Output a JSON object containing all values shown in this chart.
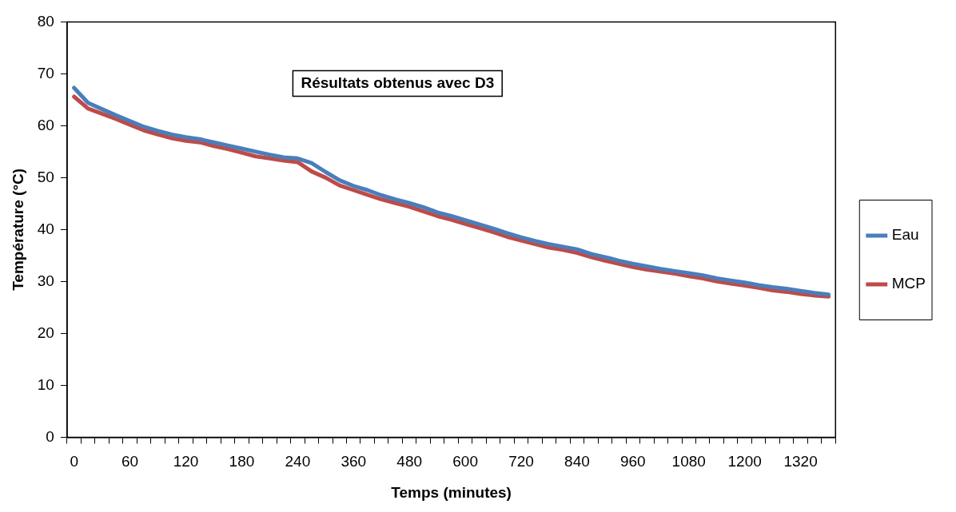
{
  "chart_data": {
    "type": "line",
    "title": "Résultats obtenus avec D3",
    "xlabel": "Temps (minutes)",
    "ylabel": "Température (°C)",
    "categories": [
      "0",
      null,
      null,
      null,
      "60",
      null,
      null,
      null,
      "120",
      null,
      null,
      null,
      "180",
      null,
      null,
      null,
      "240",
      null,
      null,
      null,
      "360",
      null,
      null,
      null,
      "480",
      null,
      null,
      null,
      "600",
      null,
      null,
      null,
      "720",
      null,
      null,
      null,
      "840",
      null,
      null,
      null,
      "960",
      null,
      null,
      null,
      "1080",
      null,
      null,
      null,
      "1200",
      null,
      null,
      null,
      "1320",
      null,
      null
    ],
    "series": [
      {
        "name": "Eau",
        "color": "#4a7ebb",
        "values": [
          67.3,
          64.4,
          63.2,
          62.0,
          60.9,
          59.8,
          59.0,
          58.3,
          57.8,
          57.4,
          56.8,
          56.2,
          55.6,
          55.0,
          54.4,
          53.9,
          53.7,
          52.8,
          51.1,
          49.5,
          48.4,
          47.6,
          46.6,
          45.8,
          45.1,
          44.3,
          43.3,
          42.6,
          41.8,
          41.0,
          40.2,
          39.3,
          38.5,
          37.8,
          37.2,
          36.7,
          36.2,
          35.3,
          34.7,
          34.0,
          33.4,
          32.9,
          32.4,
          32.0,
          31.6,
          31.2,
          30.6,
          30.2,
          29.8,
          29.3,
          28.9,
          28.6,
          28.2,
          27.8,
          27.5
        ]
      },
      {
        "name": "MCP",
        "color": "#be4b48",
        "values": [
          65.6,
          63.3,
          62.3,
          61.3,
          60.2,
          59.1,
          58.3,
          57.6,
          57.1,
          56.8,
          56.1,
          55.5,
          54.8,
          54.1,
          53.7,
          53.3,
          53.0,
          51.2,
          50.0,
          48.5,
          47.6,
          46.7,
          45.8,
          45.1,
          44.4,
          43.5,
          42.6,
          41.9,
          41.1,
          40.3,
          39.5,
          38.6,
          37.9,
          37.2,
          36.5,
          36.1,
          35.5,
          34.7,
          34.0,
          33.4,
          32.8,
          32.3,
          31.9,
          31.5,
          31.0,
          30.6,
          30.0,
          29.6,
          29.2,
          28.8,
          28.3,
          28.0,
          27.6,
          27.3,
          27.1
        ]
      }
    ],
    "ylim": [
      0,
      80
    ],
    "yticks": [
      0,
      10,
      20,
      30,
      40,
      50,
      60,
      70,
      80
    ],
    "grid": false,
    "legend": "right",
    "line_style": "solid",
    "marker": "none"
  }
}
